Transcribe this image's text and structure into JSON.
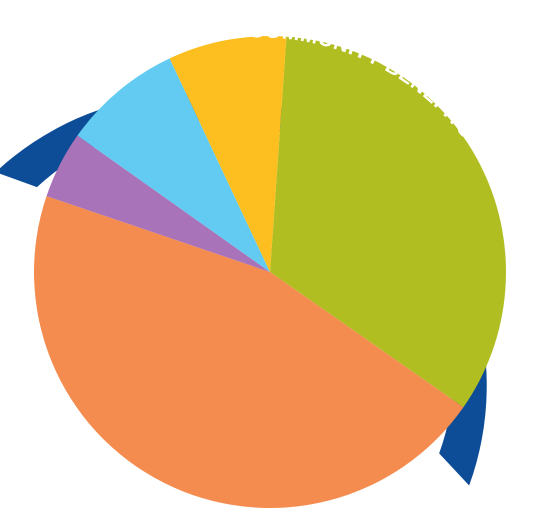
{
  "chart_data": {
    "type": "pie",
    "title": "TOTAL COMMUNITY BENEFITS",
    "start_angle_deg": 4,
    "direction": "clockwise",
    "slices": [
      {
        "value": 33.6,
        "color": "#B1BE22"
      },
      {
        "value": 45.5,
        "color": "#F58C4F"
      },
      {
        "value": 4.6,
        "color": "#A873B8"
      },
      {
        "value": 8.2,
        "color": "#63CBF2"
      },
      {
        "value": 8.1,
        "color": "#FDBF1F"
      }
    ],
    "ring_color": "#0D4C97",
    "background": "#FFFFFF"
  }
}
